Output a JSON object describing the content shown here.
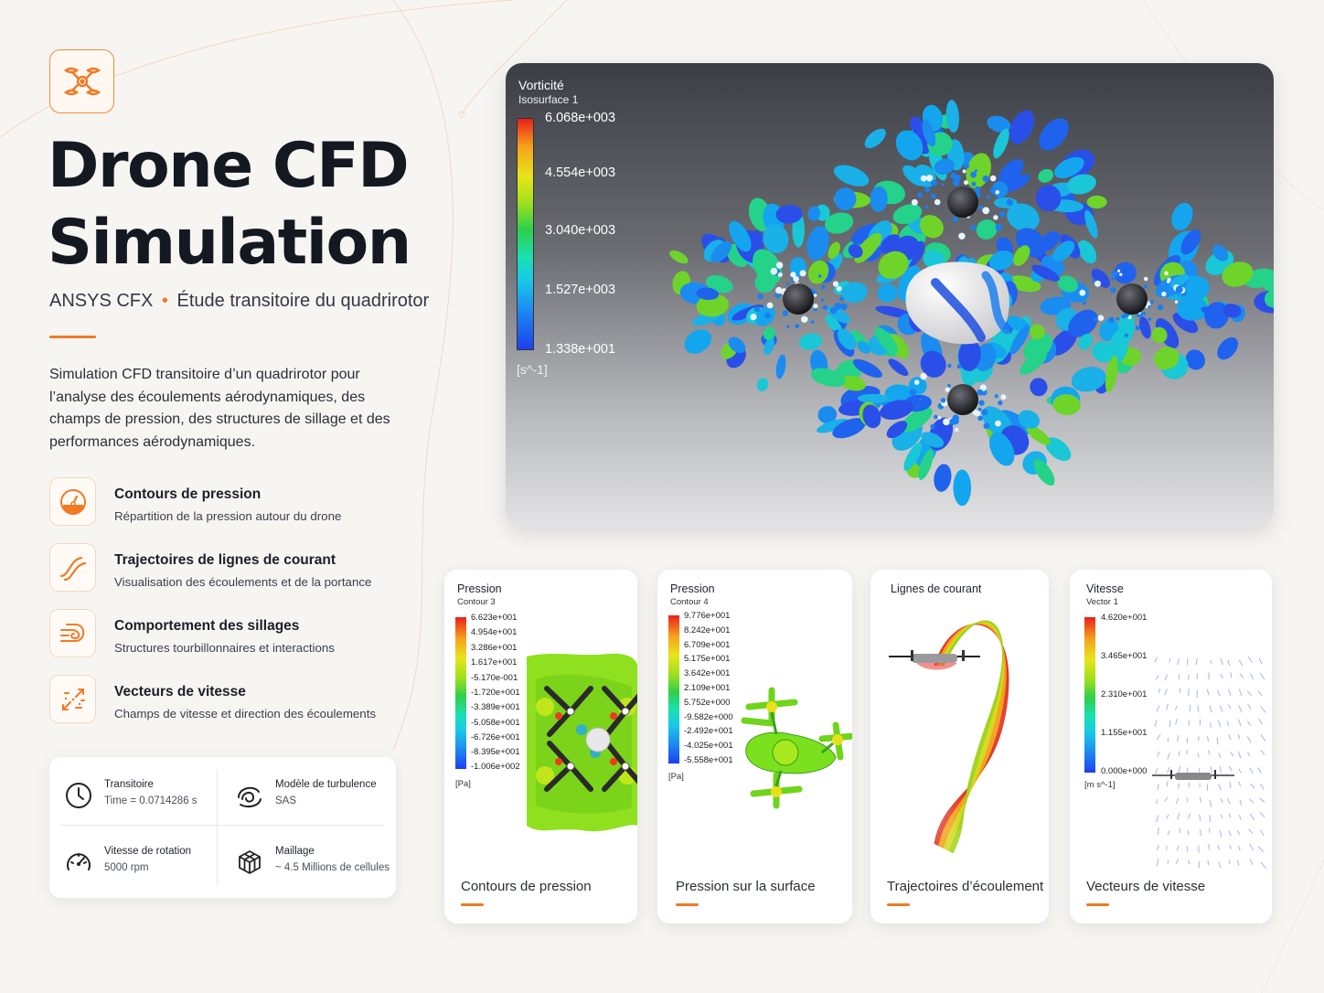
{
  "header": {
    "title_line1": "Drone CFD",
    "title_line2": "Simulation",
    "software": "ANSYS CFX",
    "separator": "•",
    "study": "Étude transitoire du quadrirotor",
    "description": "Simulation CFD transitoire d’un quadrirotor pour l’analyse des écoulements aérodynamiques, des champs de pression, des structures de sillage et des performances aérodynamiques."
  },
  "features": [
    {
      "title": "Contours de pression",
      "desc": "Répartition de la pression autour du drone",
      "icon": "gauge-icon"
    },
    {
      "title": "Trajectoires de lignes de courant",
      "desc": "Visualisation des écoulements et de la portance",
      "icon": "streamline-icon"
    },
    {
      "title": "Comportement des sillages",
      "desc": "Structures tourbillonnaires et interactions",
      "icon": "wake-icon"
    },
    {
      "title": "Vecteurs de vitesse",
      "desc": "Champs de vitesse et direction des écoulements",
      "icon": "vectors-icon"
    }
  ],
  "parameters": [
    {
      "label": "Transitoire",
      "value": "Time = 0.0714286 s",
      "icon": "clock-icon"
    },
    {
      "label": "Modèle de turbulence",
      "value": "SAS",
      "icon": "swirl-icon"
    },
    {
      "label": "Vitesse de rotation",
      "value": "5000 rpm",
      "icon": "speedometer-icon"
    },
    {
      "label": "Maillage",
      "value": "~ 4.5 Millions de cellules",
      "icon": "cube-mesh-icon"
    }
  ],
  "hero": {
    "variable": "Vorticité",
    "surface": "Isosurface 1",
    "ticks": [
      "6.068e+003",
      "4.554e+003",
      "3.040e+003",
      "1.527e+003",
      "1.338e+001"
    ],
    "unit": "[s^-1]"
  },
  "cards": [
    {
      "title": "Pression",
      "subtitle": "Contour 3",
      "ticks": [
        "6.623e+001",
        "4.954e+001",
        "3.286e+001",
        "1.617e+001",
        "-5.170e-001",
        "-1.720e+001",
        "-3.389e+001",
        "-5.058e+001",
        "-6.726e+001",
        "-8.395e+001",
        "-1.006e+002"
      ],
      "unit": "[Pa]",
      "caption": "Contours de pression"
    },
    {
      "title": "Pression",
      "subtitle": "Contour 4",
      "ticks": [
        "9.776e+001",
        "8.242e+001",
        "6.709e+001",
        "5.175e+001",
        "3.642e+001",
        "2.109e+001",
        "5.752e+000",
        "-9.582e+000",
        "-2.492e+001",
        "-4.025e+001",
        "-5.558e+001"
      ],
      "unit": "[Pa]",
      "caption": "Pression sur la surface"
    },
    {
      "title": "Lignes de courant",
      "subtitle": "",
      "ticks": [],
      "unit": "",
      "caption": "Trajectoires d’écoulement"
    },
    {
      "title": "Vitesse",
      "subtitle": "Vector 1",
      "ticks": [
        "4.620e+001",
        "3.465e+001",
        "2.310e+001",
        "1.155e+001",
        "0.000e+000"
      ],
      "unit": "[m s^-1]",
      "caption": "Vecteurs de vitesse"
    }
  ],
  "colors": {
    "accent": "#f07a26",
    "background": "#f7f5f2",
    "title": "#141820"
  }
}
